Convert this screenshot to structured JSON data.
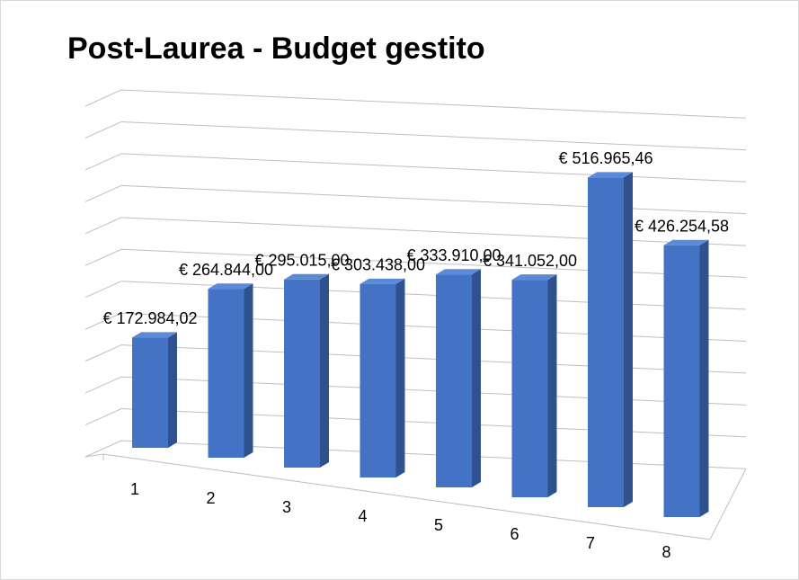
{
  "chart_data": {
    "type": "bar3d",
    "title": "Post-Laurea - Budget gestito",
    "categories": [
      "1",
      "2",
      "3",
      "4",
      "5",
      "6",
      "7",
      "8"
    ],
    "values": [
      172984.02,
      264844,
      295015,
      303438,
      333910,
      341052,
      516965.46,
      426254.58
    ],
    "value_labels": [
      "€ 172.984,02",
      "€ 264.844,00",
      "€ 295.015,00",
      "€ 303.438,00",
      "€ 333.910,00",
      "€ 341.052,00",
      "€ 516.965,46",
      "€ 426.254,58"
    ],
    "color": "#4472c4",
    "ylim": [
      0,
      550000
    ],
    "yticks": [
      0,
      50000,
      100000,
      150000,
      200000,
      250000,
      300000,
      350000,
      400000,
      450000,
      500000,
      550000
    ],
    "grid": true
  }
}
